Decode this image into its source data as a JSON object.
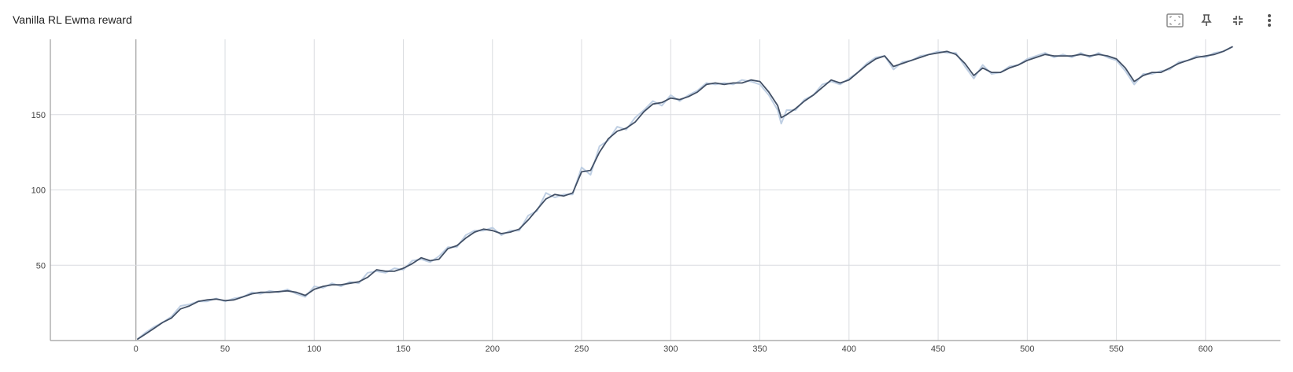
{
  "card": {
    "title": "Vanilla RL Ewma reward",
    "toolbar": [
      {
        "name": "toggle-log-scale-icon"
      },
      {
        "name": "pin-icon"
      },
      {
        "name": "collapse-icon"
      },
      {
        "name": "more-vert-icon"
      }
    ]
  },
  "chart_data": {
    "type": "line",
    "title": "Vanilla RL Ewma reward",
    "xlabel": "",
    "ylabel": "",
    "xlim": [
      -48,
      642
    ],
    "ylim": [
      0,
      200
    ],
    "x_ticks": [
      "0",
      "50",
      "100",
      "150",
      "200",
      "250",
      "300",
      "350",
      "400",
      "450",
      "500",
      "550",
      "600"
    ],
    "x_tick_values": [
      0,
      50,
      100,
      150,
      200,
      250,
      300,
      350,
      400,
      450,
      500,
      550,
      600
    ],
    "y_ticks": [
      "50",
      "100",
      "150"
    ],
    "y_tick_values": [
      50,
      100,
      150
    ],
    "grid": true,
    "legend": "none",
    "colors": {
      "smoothed": "#425066",
      "raw": "#bfcfe3",
      "grid": "#dadce0",
      "axis": "#9e9e9e"
    },
    "series": [
      {
        "role": "smoothed",
        "x": [
          1,
          5,
          10,
          15,
          20,
          25,
          30,
          35,
          40,
          45,
          50,
          55,
          60,
          65,
          70,
          75,
          80,
          85,
          90,
          95,
          100,
          105,
          110,
          115,
          120,
          125,
          130,
          135,
          140,
          145,
          150,
          155,
          160,
          165,
          170,
          175,
          180,
          185,
          190,
          195,
          200,
          205,
          210,
          215,
          220,
          225,
          230,
          235,
          240,
          245,
          250,
          255,
          260,
          265,
          270,
          275,
          280,
          285,
          290,
          295,
          300,
          305,
          310,
          315,
          320,
          325,
          330,
          335,
          340,
          345,
          350,
          355,
          360,
          362,
          365,
          370,
          375,
          380,
          385,
          390,
          395,
          400,
          405,
          410,
          415,
          420,
          425,
          430,
          435,
          440,
          445,
          450,
          455,
          460,
          465,
          470,
          475,
          480,
          485,
          490,
          495,
          500,
          505,
          510,
          515,
          520,
          525,
          530,
          535,
          540,
          545,
          550,
          555,
          560,
          565,
          570,
          575,
          580,
          585,
          590,
          595,
          600,
          605,
          610,
          615
        ],
        "values": [
          1,
          4,
          8,
          12,
          15,
          21,
          23,
          26,
          27,
          27.5,
          26.5,
          27,
          29,
          31,
          32,
          32,
          32.5,
          33,
          32,
          30,
          34,
          36,
          37,
          37,
          38,
          39,
          42,
          47,
          46,
          46,
          48,
          51,
          55,
          53,
          54,
          61,
          63,
          68,
          72,
          74,
          73,
          71,
          72,
          74,
          80,
          87,
          94,
          97,
          96,
          98,
          112,
          113,
          125,
          134,
          139,
          141,
          145,
          152,
          157,
          158,
          161,
          160,
          162,
          165,
          170,
          171,
          170,
          171,
          171,
          173,
          172,
          165,
          156,
          148,
          150,
          154,
          159,
          163,
          168,
          173,
          171,
          173,
          178,
          183,
          187,
          189,
          182,
          184,
          186,
          188,
          190,
          191,
          192,
          190,
          184,
          176,
          181,
          178,
          178,
          181,
          183,
          186,
          188,
          190,
          189,
          189,
          189,
          190,
          189,
          190,
          189,
          187,
          181,
          172,
          176,
          178,
          178,
          181,
          184,
          186,
          188,
          189,
          190,
          192,
          195
        ]
      },
      {
        "role": "raw",
        "x": [
          1,
          5,
          10,
          15,
          20,
          25,
          30,
          35,
          40,
          45,
          50,
          55,
          60,
          65,
          70,
          75,
          80,
          85,
          90,
          95,
          100,
          105,
          110,
          115,
          120,
          125,
          130,
          135,
          140,
          145,
          150,
          155,
          160,
          165,
          170,
          175,
          180,
          185,
          190,
          195,
          200,
          205,
          210,
          215,
          220,
          225,
          230,
          235,
          240,
          245,
          250,
          255,
          260,
          265,
          270,
          275,
          280,
          285,
          290,
          295,
          300,
          305,
          310,
          315,
          320,
          325,
          330,
          335,
          340,
          345,
          350,
          355,
          360,
          362,
          365,
          370,
          375,
          380,
          385,
          390,
          395,
          400,
          405,
          410,
          415,
          420,
          425,
          430,
          435,
          440,
          445,
          450,
          455,
          460,
          465,
          470,
          475,
          480,
          485,
          490,
          495,
          500,
          505,
          510,
          515,
          520,
          525,
          530,
          535,
          540,
          545,
          550,
          555,
          560,
          565,
          570,
          575,
          580,
          585,
          590,
          595,
          600,
          605,
          610,
          615
        ],
        "values": [
          1,
          5,
          9,
          12,
          16,
          23,
          24,
          26,
          26,
          28,
          26,
          28,
          29,
          32,
          31,
          33,
          32,
          34,
          31,
          29,
          36,
          35,
          38,
          36,
          39,
          38,
          45,
          46,
          45,
          48,
          47,
          53,
          54,
          52,
          56,
          62,
          62,
          70,
          73,
          73,
          75,
          70,
          73,
          73,
          83,
          86,
          98,
          95,
          97,
          97,
          115,
          110,
          129,
          133,
          142,
          140,
          148,
          153,
          159,
          156,
          163,
          159,
          163,
          166,
          171,
          170,
          171,
          170,
          173,
          172,
          170,
          163,
          153,
          144,
          153,
          153,
          160,
          163,
          170,
          172,
          170,
          174,
          178,
          184,
          188,
          189,
          180,
          185,
          186,
          189,
          190,
          192,
          191,
          191,
          182,
          174,
          183,
          177,
          178,
          182,
          183,
          187,
          189,
          191,
          188,
          190,
          188,
          191,
          188,
          191,
          188,
          186,
          179,
          170,
          177,
          177,
          179,
          180,
          185,
          186,
          189,
          188,
          191,
          192,
          195
        ]
      }
    ]
  }
}
